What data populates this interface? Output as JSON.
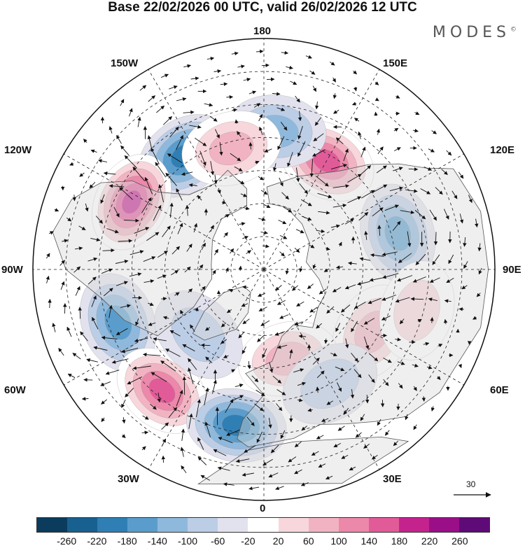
{
  "title": "Base 22/02/2026 00 UTC, valid 26/02/2026 12 UTC",
  "brand": {
    "name": "MODES",
    "mark": "©"
  },
  "longitude_labels": {
    "n180": "180",
    "w150": "150W",
    "e150": "150E",
    "w120": "120W",
    "e120": "120E",
    "w90": "90W",
    "e90": "90E",
    "w60": "60W",
    "e60": "60E",
    "w30": "30W",
    "e30": "30E",
    "zero": "0"
  },
  "reference_vector": {
    "label": "30"
  },
  "colorbar": {
    "colors": [
      "#0b3c5d",
      "#18608f",
      "#2f7fb4",
      "#5a9dcc",
      "#8fb9dc",
      "#bccde6",
      "#e2e2ee",
      "#ffffff",
      "#f7d7dc",
      "#f1b3c2",
      "#ec88aa",
      "#e25b99",
      "#c4238e",
      "#9a0f88",
      "#5e0b77"
    ],
    "labels": [
      "-260",
      "-220",
      "-180",
      "-140",
      "-100",
      "-60",
      "-20",
      "20",
      "60",
      "100",
      "140",
      "180",
      "220",
      "260"
    ]
  },
  "anomaly_centers": [
    {
      "name": "low-150W",
      "lon": -145,
      "lat": 48,
      "value": -200
    },
    {
      "name": "high-120W",
      "lon": -117,
      "lat": 45,
      "value": 220
    },
    {
      "name": "high-150E",
      "lon": 150,
      "lat": 52,
      "value": 200
    },
    {
      "name": "low-100E",
      "lon": 105,
      "lat": 48,
      "value": -170
    },
    {
      "name": "low-70W",
      "lon": -70,
      "lat": 43,
      "value": -140
    },
    {
      "name": "high-40W",
      "lon": -40,
      "lat": 42,
      "value": 190
    },
    {
      "name": "low-10W",
      "lon": -10,
      "lat": 42,
      "value": -180
    },
    {
      "name": "high-60E",
      "lon": 60,
      "lat": 52,
      "value": 100
    },
    {
      "name": "high-15E",
      "lon": 15,
      "lat": 62,
      "value": 120
    },
    {
      "name": "low-175E",
      "lon": 175,
      "lat": 48,
      "value": -120
    },
    {
      "name": "low-30E",
      "lon": 30,
      "lat": 50,
      "value": -90
    },
    {
      "name": "high-165W",
      "lon": -165,
      "lat": 52,
      "value": 120
    },
    {
      "name": "low-45W",
      "lon": -45,
      "lat": 62,
      "value": -60
    },
    {
      "name": "high-75E",
      "lon": 75,
      "lat": 42,
      "value": 80
    }
  ]
}
